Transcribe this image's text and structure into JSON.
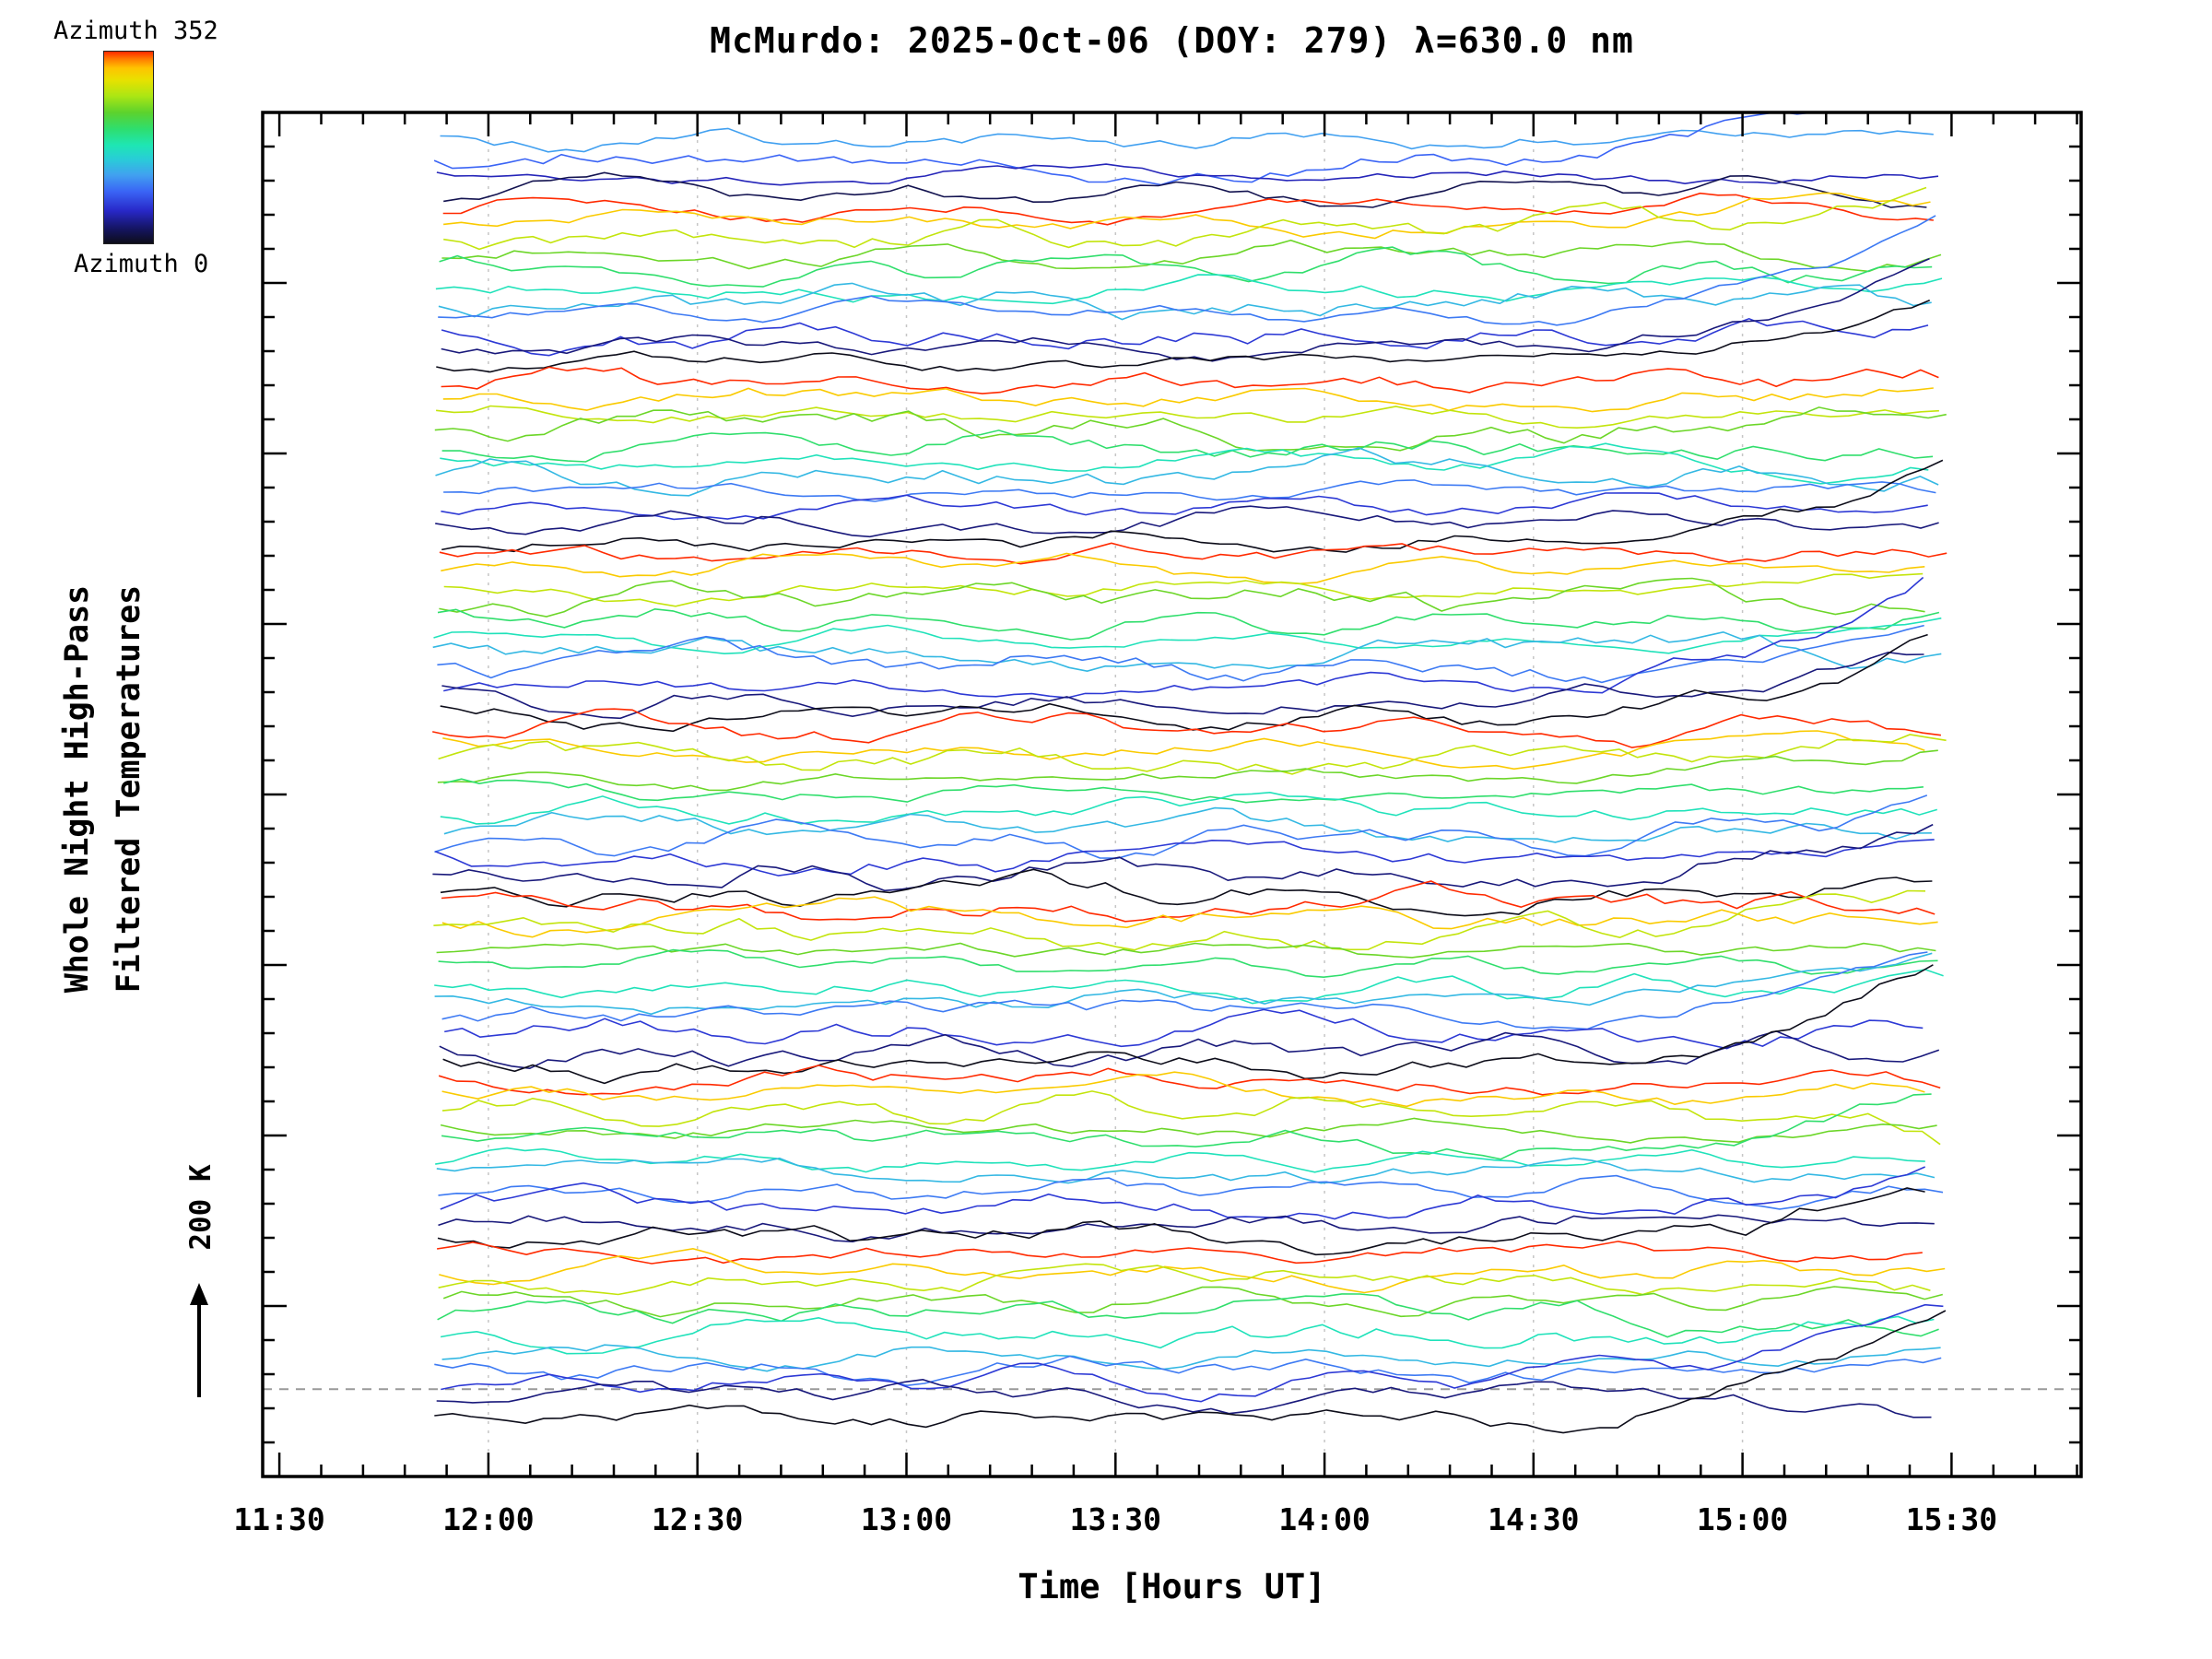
{
  "title": "McMurdo: 2025-Oct-06 (DOY: 279) λ=630.0 nm",
  "ylabel_line1": "Whole Night High-Pass",
  "ylabel_line2": "Filtered Temperatures",
  "scale_bar_label": "200 K",
  "colorbar": {
    "top_label": "Azimuth 352",
    "bottom_label": "Azimuth 0",
    "azimuth_min": 0,
    "azimuth_max": 352,
    "stops": [
      [
        0,
        "#0d0d1a"
      ],
      [
        30,
        "#16166b"
      ],
      [
        60,
        "#2828c8"
      ],
      [
        95,
        "#3a64f5"
      ],
      [
        125,
        "#41a0f0"
      ],
      [
        155,
        "#28cdd7"
      ],
      [
        180,
        "#1ee6b4"
      ],
      [
        210,
        "#2ede6e"
      ],
      [
        240,
        "#5cd22d"
      ],
      [
        270,
        "#aae614"
      ],
      [
        300,
        "#e8e100"
      ],
      [
        322,
        "#ffc300"
      ],
      [
        338,
        "#ff7d00"
      ],
      [
        352,
        "#ff2a00"
      ]
    ]
  },
  "chart_data": {
    "type": "line",
    "title": "McMurdo: 2025-Oct-06 (DOY: 279) λ=630.0 nm",
    "xlabel": "Time [Hours UT]",
    "ylabel": "Whole Night High-Pass Filtered Temperatures",
    "x_tick_labels": [
      "11:30",
      "12:00",
      "12:30",
      "13:00",
      "13:30",
      "14:00",
      "14:30",
      "15:00",
      "15:30"
    ],
    "x_tick_hours": [
      11.5,
      12.0,
      12.5,
      13.0,
      13.5,
      14.0,
      14.5,
      15.0,
      15.5
    ],
    "x_minor_step_hours": 0.1,
    "xlim_hours": [
      11.46,
      15.81
    ],
    "grid_hours_dashed": [
      12.0,
      12.5,
      13.0,
      13.5,
      14.0,
      14.5,
      15.0
    ],
    "hline_frac_from_top": 0.936,
    "y_tick_labels": [],
    "y_axis_note": "no numeric y labels; vertical scale given by 200 K scale bar",
    "scale_bar_K": 200,
    "time_start_hours": 11.88,
    "time_end_hours": 15.46,
    "points_per_trace": 84,
    "n_traces": 81,
    "approx_fluctuation_amplitude_K": 30,
    "series_description": "81 whole-night high-pass filtered temperature time series, one per look direction, vertically offset in stacking order and colored by azimuth (0-352 deg, rainbow colorbar); azimuth color cycle repeats ~7.5 times from top to bottom; several dark/blue traces sweep upward after 14:30 UT",
    "azimuths": [
      125,
      95,
      55,
      20,
      352,
      317,
      282,
      246,
      211,
      176,
      141,
      106,
      70,
      35,
      0,
      352,
      317,
      282,
      246,
      211,
      176,
      141,
      106,
      70,
      35,
      0,
      352,
      317,
      282,
      246,
      211,
      176,
      141,
      106,
      70,
      35,
      0,
      352,
      317,
      282,
      246,
      211,
      176,
      141,
      106,
      70,
      35,
      0,
      352,
      317,
      282,
      246,
      211,
      176,
      141,
      106,
      70,
      35,
      0,
      352,
      317,
      282,
      246,
      211,
      176,
      141,
      106,
      70,
      35,
      0,
      352,
      317,
      282,
      246,
      211,
      176,
      141,
      106,
      70,
      35,
      0
    ],
    "seed": 20251006
  }
}
